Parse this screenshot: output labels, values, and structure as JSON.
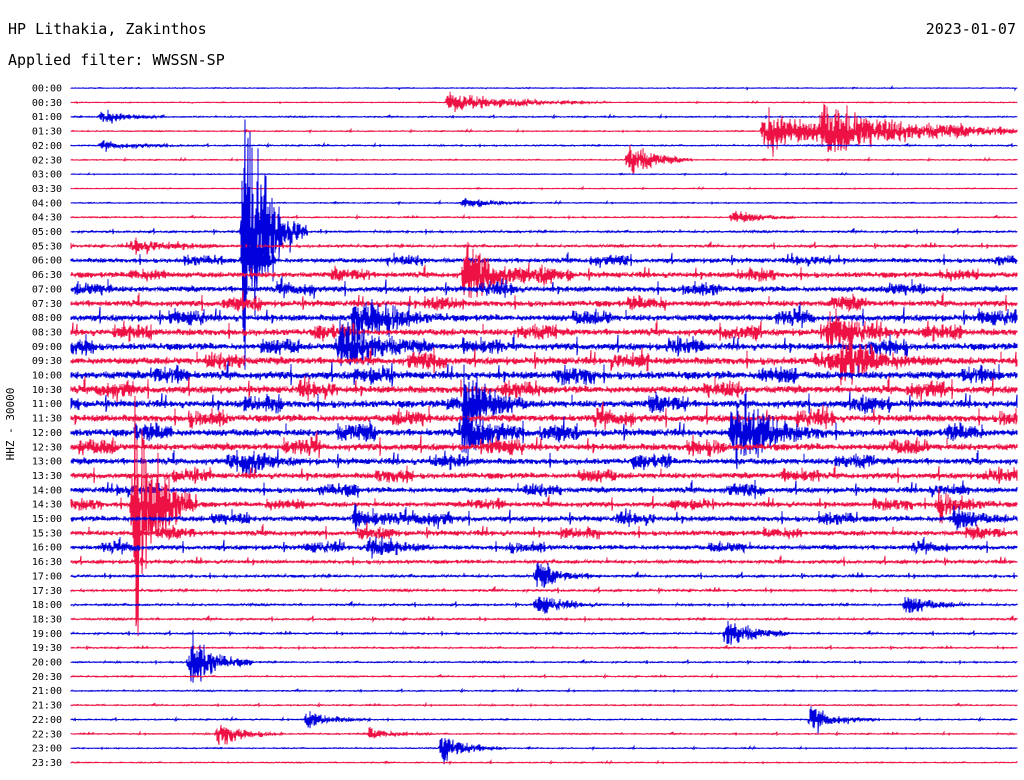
{
  "header": {
    "station": "HP Lithakia, Zakinthos",
    "date": "2023-01-07",
    "filter_label": "Applied filter:",
    "filter_value": "WWSSN-SP"
  },
  "chart_data": {
    "type": "line",
    "title": "HP Lithakia, Zakinthos",
    "ylabel": "HHZ - 30000",
    "xlabel": "",
    "row_labels": [
      "00:00",
      "00:30",
      "01:00",
      "01:30",
      "02:00",
      "02:30",
      "03:00",
      "03:30",
      "04:00",
      "04:30",
      "05:00",
      "05:30",
      "06:00",
      "06:30",
      "07:00",
      "07:30",
      "08:00",
      "08:30",
      "09:00",
      "09:30",
      "10:00",
      "10:30",
      "11:00",
      "11:30",
      "12:00",
      "12:30",
      "13:00",
      "13:30",
      "14:00",
      "14:30",
      "15:00",
      "15:30",
      "16:00",
      "16:30",
      "17:00",
      "17:30",
      "18:00",
      "18:30",
      "19:00",
      "19:30",
      "20:00",
      "20:30",
      "21:00",
      "21:30",
      "22:00",
      "22:30",
      "23:00",
      "23:30"
    ],
    "row_minutes": 30,
    "series_colors": [
      "#0000dd",
      "#ee1144"
    ],
    "noise_level": [
      0.3,
      0.3,
      0.5,
      0.4,
      0.5,
      0.4,
      0.3,
      0.3,
      0.4,
      0.5,
      0.8,
      1.0,
      1.8,
      2.2,
      2.3,
      2.4,
      2.6,
      2.7,
      2.8,
      3.0,
      3.2,
      3.0,
      3.0,
      2.9,
      3.0,
      2.8,
      2.5,
      2.3,
      2.2,
      2.0,
      2.2,
      2.0,
      1.8,
      1.4,
      1.0,
      0.9,
      0.8,
      0.8,
      0.7,
      0.6,
      0.6,
      0.5,
      0.5,
      0.5,
      0.5,
      0.5,
      0.4,
      0.4
    ],
    "events": [
      {
        "row": 1,
        "minute": 12,
        "amplitude": 10,
        "duration_min": 5
      },
      {
        "row": 2,
        "minute": 1,
        "amplitude": 8,
        "duration_min": 2
      },
      {
        "row": 3,
        "minute": 22,
        "amplitude": 25,
        "duration_min": 4
      },
      {
        "row": 3,
        "minute": 23.8,
        "amplitude": 20,
        "duration_min": 9
      },
      {
        "row": 4,
        "minute": 1,
        "amplitude": 4,
        "duration_min": 3
      },
      {
        "row": 5,
        "minute": 17.7,
        "amplitude": 18,
        "duration_min": 2
      },
      {
        "row": 8,
        "minute": 12.5,
        "amplitude": 6,
        "duration_min": 2
      },
      {
        "row": 9,
        "minute": 21,
        "amplitude": 8,
        "duration_min": 2
      },
      {
        "row": 10,
        "minute": 5.5,
        "amplitude": 120,
        "duration_min": 2
      },
      {
        "row": 11,
        "minute": 2,
        "amplitude": 8,
        "duration_min": 3
      },
      {
        "row": 12,
        "minute": 5.5,
        "amplitude": 60,
        "duration_min": 1
      },
      {
        "row": 13,
        "minute": 12.5,
        "amplitude": 28,
        "duration_min": 3
      },
      {
        "row": 16,
        "minute": 9,
        "amplitude": 20,
        "duration_min": 3
      },
      {
        "row": 17,
        "minute": 24,
        "amplitude": 18,
        "duration_min": 3
      },
      {
        "row": 18,
        "minute": 8.5,
        "amplitude": 30,
        "duration_min": 3
      },
      {
        "row": 19,
        "minute": 24.5,
        "amplitude": 22,
        "duration_min": 3
      },
      {
        "row": 22,
        "minute": 12.5,
        "amplitude": 40,
        "duration_min": 2
      },
      {
        "row": 24,
        "minute": 12.5,
        "amplitude": 30,
        "duration_min": 2
      },
      {
        "row": 24,
        "minute": 21,
        "amplitude": 30,
        "duration_min": 3
      },
      {
        "row": 26,
        "minute": 5.5,
        "amplitude": 10,
        "duration_min": 2
      },
      {
        "row": 29,
        "minute": 2,
        "amplitude": 110,
        "duration_min": 2
      },
      {
        "row": 29,
        "minute": 27.5,
        "amplitude": 14,
        "duration_min": 2
      },
      {
        "row": 30,
        "minute": 9,
        "amplitude": 10,
        "duration_min": 3
      },
      {
        "row": 30,
        "minute": 28,
        "amplitude": 12,
        "duration_min": 2
      },
      {
        "row": 32,
        "minute": 9.5,
        "amplitude": 14,
        "duration_min": 2
      },
      {
        "row": 34,
        "minute": 14.8,
        "amplitude": 12,
        "duration_min": 2
      },
      {
        "row": 36,
        "minute": 14.8,
        "amplitude": 10,
        "duration_min": 2
      },
      {
        "row": 36,
        "minute": 26.5,
        "amplitude": 10,
        "duration_min": 2
      },
      {
        "row": 38,
        "minute": 20.8,
        "amplitude": 16,
        "duration_min": 2
      },
      {
        "row": 40,
        "minute": 3.8,
        "amplitude": 26,
        "duration_min": 2
      },
      {
        "row": 44,
        "minute": 7.5,
        "amplitude": 8,
        "duration_min": 2
      },
      {
        "row": 44,
        "minute": 23.5,
        "amplitude": 12,
        "duration_min": 2
      },
      {
        "row": 45,
        "minute": 4.7,
        "amplitude": 12,
        "duration_min": 2
      },
      {
        "row": 45,
        "minute": 9.5,
        "amplitude": 6,
        "duration_min": 2
      },
      {
        "row": 46,
        "minute": 11.8,
        "amplitude": 14,
        "duration_min": 2
      }
    ]
  }
}
